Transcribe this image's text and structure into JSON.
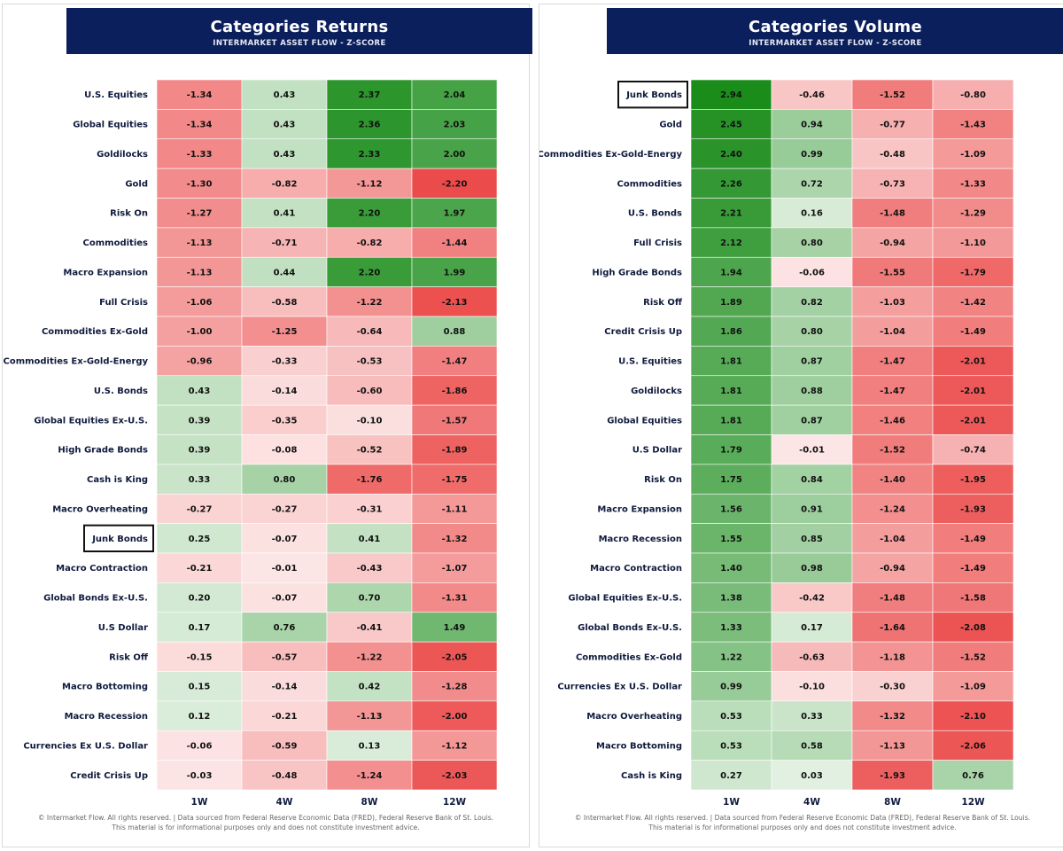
{
  "footer": {
    "line1": "© Intermarket Flow. All rights reserved.   |   Data sourced from Federal Reserve Economic Data (FRED), Federal Reserve Bank of St. Louis.",
    "line2": "This material is for informational purposes only and does not constitute investment advice."
  },
  "colors": {
    "header_bg": "#0a1f5c",
    "positive": "#1a8c1a",
    "negative": "#e8302f",
    "neutral": "#ffffff"
  },
  "chart_data": [
    {
      "type": "heatmap",
      "title": "Categories  Returns",
      "subtitle": "INTERMARKET ASSET FLOW  -  Z-SCORE",
      "highlight": "Junk Bonds",
      "columns": [
        "1W",
        "4W",
        "8W",
        "12W"
      ],
      "rows": [
        {
          "label": "U.S. Equities",
          "values": [
            -1.34,
            0.43,
            2.37,
            2.04
          ]
        },
        {
          "label": "Global Equities",
          "values": [
            -1.34,
            0.43,
            2.36,
            2.03
          ]
        },
        {
          "label": "Goldilocks",
          "values": [
            -1.33,
            0.43,
            2.33,
            2.0
          ]
        },
        {
          "label": "Gold",
          "values": [
            -1.3,
            -0.82,
            -1.12,
            -2.2
          ]
        },
        {
          "label": "Risk On",
          "values": [
            -1.27,
            0.41,
            2.2,
            1.97
          ]
        },
        {
          "label": "Commodities",
          "values": [
            -1.13,
            -0.71,
            -0.82,
            -1.44
          ]
        },
        {
          "label": "Macro Expansion",
          "values": [
            -1.13,
            0.44,
            2.2,
            1.99
          ]
        },
        {
          "label": "Full Crisis",
          "values": [
            -1.06,
            -0.58,
            -1.22,
            -2.13
          ]
        },
        {
          "label": "Commodities Ex-Gold",
          "values": [
            -1.0,
            -1.25,
            -0.64,
            0.88
          ]
        },
        {
          "label": "Commodities Ex-Gold-Energy",
          "values": [
            -0.96,
            -0.33,
            -0.53,
            -1.47
          ]
        },
        {
          "label": "U.S. Bonds",
          "values": [
            0.43,
            -0.14,
            -0.6,
            -1.86
          ]
        },
        {
          "label": "Global Equities Ex-U.S.",
          "values": [
            0.39,
            -0.35,
            -0.1,
            -1.57
          ]
        },
        {
          "label": "High Grade Bonds",
          "values": [
            0.39,
            -0.08,
            -0.52,
            -1.89
          ]
        },
        {
          "label": "Cash is King",
          "values": [
            0.33,
            0.8,
            -1.76,
            -1.75
          ]
        },
        {
          "label": "Macro Overheating",
          "values": [
            -0.27,
            -0.27,
            -0.31,
            -1.11
          ]
        },
        {
          "label": "Junk Bonds",
          "values": [
            0.25,
            -0.07,
            0.41,
            -1.32
          ]
        },
        {
          "label": "Macro Contraction",
          "values": [
            -0.21,
            -0.01,
            -0.43,
            -1.07
          ]
        },
        {
          "label": "Global Bonds Ex-U.S.",
          "values": [
            0.2,
            -0.07,
            0.7,
            -1.31
          ]
        },
        {
          "label": "U.S Dollar",
          "values": [
            0.17,
            0.76,
            -0.41,
            1.49
          ]
        },
        {
          "label": "Risk Off",
          "values": [
            -0.15,
            -0.57,
            -1.22,
            -2.05
          ]
        },
        {
          "label": "Macro Bottoming",
          "values": [
            0.15,
            -0.14,
            0.42,
            -1.28
          ]
        },
        {
          "label": "Macro Recession",
          "values": [
            0.12,
            -0.21,
            -1.13,
            -2.0
          ]
        },
        {
          "label": "Currencies Ex U.S. Dollar",
          "values": [
            -0.06,
            -0.59,
            0.13,
            -1.12
          ]
        },
        {
          "label": "Credit Crisis Up",
          "values": [
            -0.03,
            -0.48,
            -1.24,
            -2.03
          ]
        }
      ]
    },
    {
      "type": "heatmap",
      "title": "Categories  Volume",
      "subtitle": "INTERMARKET ASSET FLOW  -  Z-SCORE",
      "highlight": "Junk Bonds",
      "columns": [
        "1W",
        "4W",
        "8W",
        "12W"
      ],
      "rows": [
        {
          "label": "Junk Bonds",
          "values": [
            2.94,
            -0.46,
            -1.52,
            -0.8
          ]
        },
        {
          "label": "Gold",
          "values": [
            2.45,
            0.94,
            -0.77,
            -1.43
          ]
        },
        {
          "label": "Commodities Ex-Gold-Energy",
          "values": [
            2.4,
            0.99,
            -0.48,
            -1.09
          ]
        },
        {
          "label": "Commodities",
          "values": [
            2.26,
            0.72,
            -0.73,
            -1.33
          ]
        },
        {
          "label": "U.S. Bonds",
          "values": [
            2.21,
            0.16,
            -1.48,
            -1.29
          ]
        },
        {
          "label": "Full Crisis",
          "values": [
            2.12,
            0.8,
            -0.94,
            -1.1
          ]
        },
        {
          "label": "High Grade Bonds",
          "values": [
            1.94,
            -0.06,
            -1.55,
            -1.79
          ]
        },
        {
          "label": "Risk Off",
          "values": [
            1.89,
            0.82,
            -1.03,
            -1.42
          ]
        },
        {
          "label": "Credit Crisis Up",
          "values": [
            1.86,
            0.8,
            -1.04,
            -1.49
          ]
        },
        {
          "label": "U.S. Equities",
          "values": [
            1.81,
            0.87,
            -1.47,
            -2.01
          ]
        },
        {
          "label": "Goldilocks",
          "values": [
            1.81,
            0.88,
            -1.47,
            -2.01
          ]
        },
        {
          "label": "Global Equities",
          "values": [
            1.81,
            0.87,
            -1.46,
            -2.01
          ]
        },
        {
          "label": "U.S Dollar",
          "values": [
            1.79,
            -0.01,
            -1.52,
            -0.74
          ]
        },
        {
          "label": "Risk On",
          "values": [
            1.75,
            0.84,
            -1.4,
            -1.95
          ]
        },
        {
          "label": "Macro Expansion",
          "values": [
            1.56,
            0.91,
            -1.24,
            -1.93
          ]
        },
        {
          "label": "Macro Recession",
          "values": [
            1.55,
            0.85,
            -1.04,
            -1.49
          ]
        },
        {
          "label": "Macro Contraction",
          "values": [
            1.4,
            0.98,
            -0.94,
            -1.49
          ]
        },
        {
          "label": "Global Equities Ex-U.S.",
          "values": [
            1.38,
            -0.42,
            -1.48,
            -1.58
          ]
        },
        {
          "label": "Global Bonds Ex-U.S.",
          "values": [
            1.33,
            0.17,
            -1.64,
            -2.08
          ]
        },
        {
          "label": "Commodities Ex-Gold",
          "values": [
            1.22,
            -0.63,
            -1.18,
            -1.52
          ]
        },
        {
          "label": "Currencies Ex U.S. Dollar",
          "values": [
            0.99,
            -0.1,
            -0.3,
            -1.09
          ]
        },
        {
          "label": "Macro Overheating",
          "values": [
            0.53,
            0.33,
            -1.32,
            -2.1
          ]
        },
        {
          "label": "Macro Bottoming",
          "values": [
            0.53,
            0.58,
            -1.13,
            -2.06
          ]
        },
        {
          "label": "Cash is King",
          "values": [
            0.27,
            0.03,
            -1.93,
            0.76
          ]
        }
      ]
    }
  ]
}
